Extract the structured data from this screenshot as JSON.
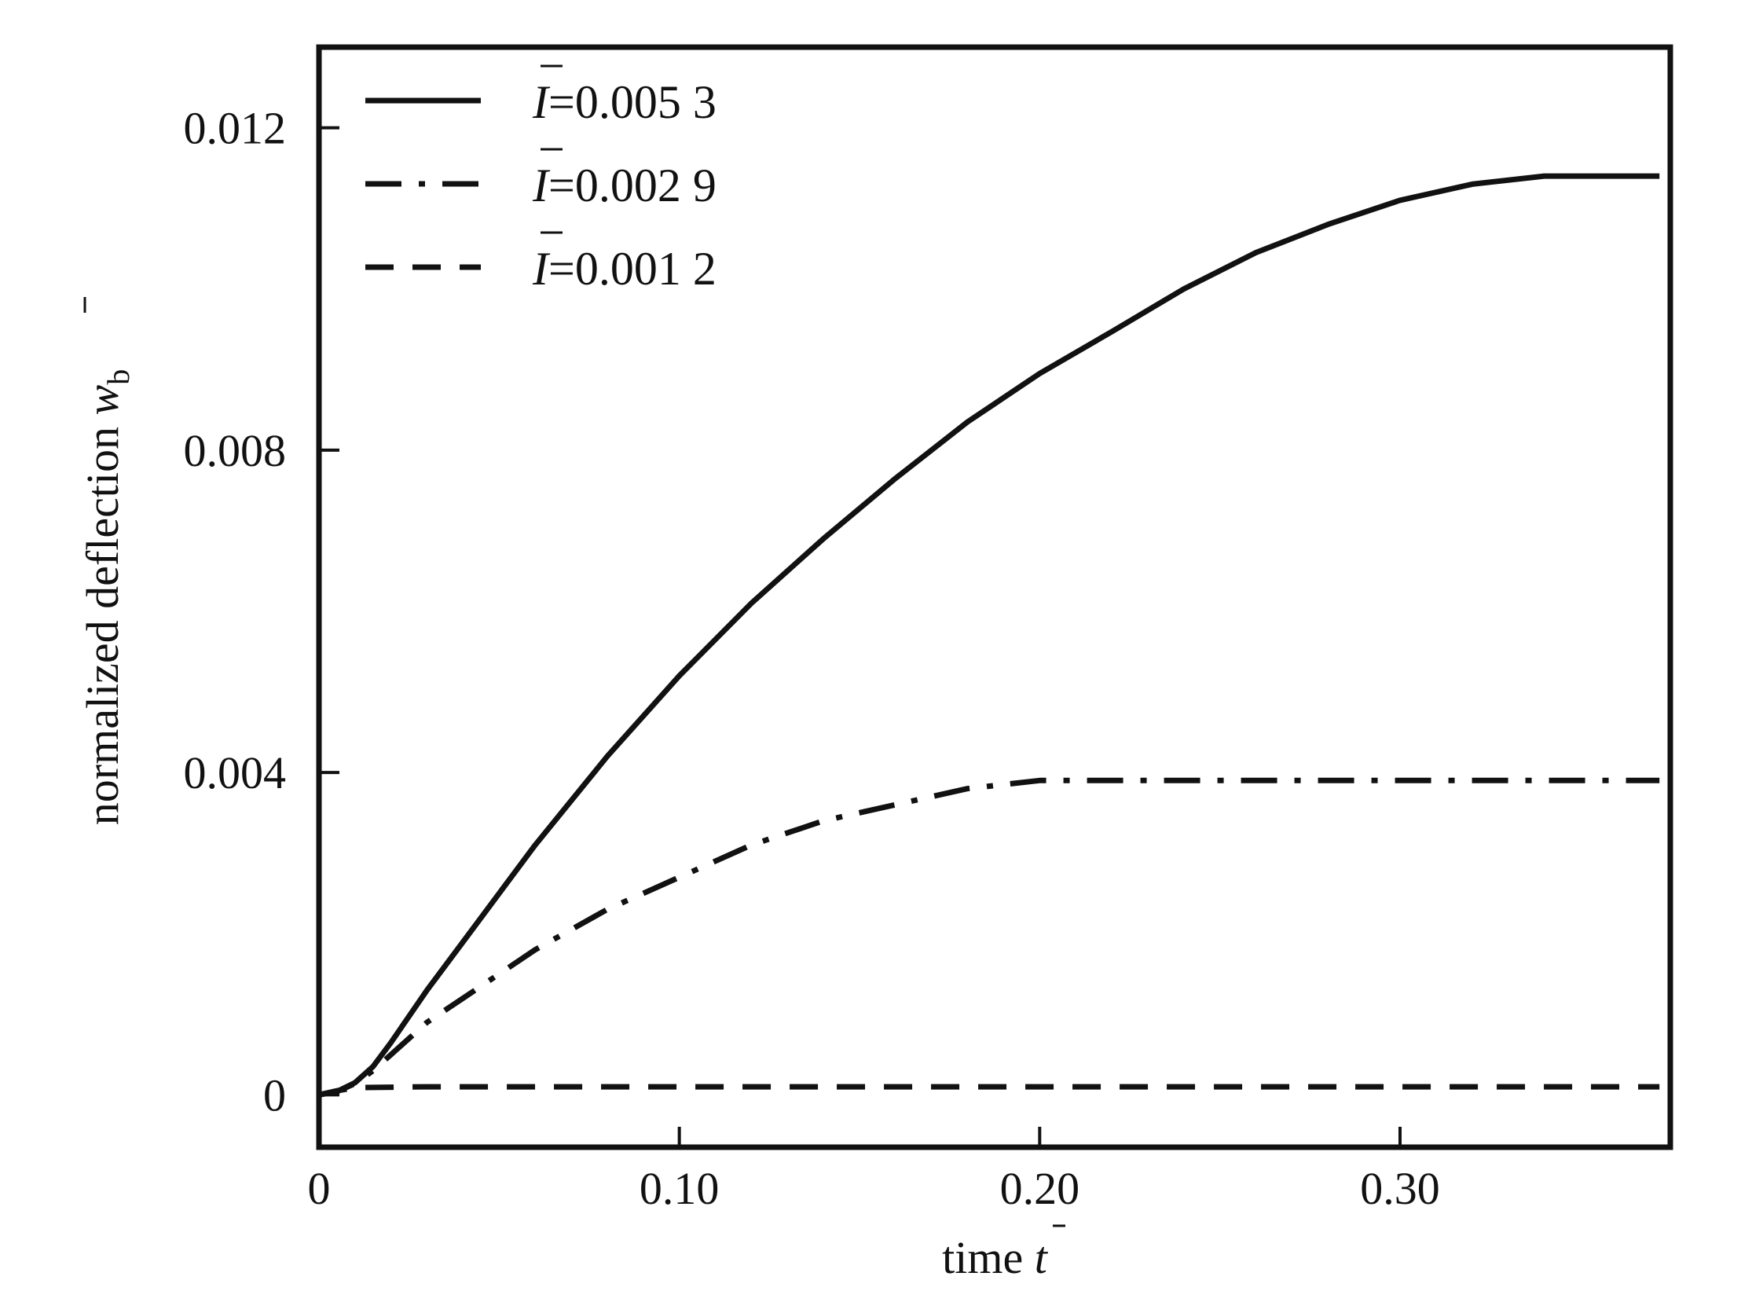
{
  "chart_data": {
    "type": "line",
    "title": "",
    "xlabel": {
      "text": "time ",
      "symbol": "t"
    },
    "ylabel": {
      "text": "normalized deflection ",
      "symbol": "w",
      "subscript": "b"
    },
    "xlim": [
      0,
      0.375
    ],
    "ylim": [
      -0.00065,
      0.013
    ],
    "xticks": [
      {
        "value": 0,
        "label": "0"
      },
      {
        "value": 0.1,
        "label": "0.10"
      },
      {
        "value": 0.2,
        "label": "0.20"
      },
      {
        "value": 0.3,
        "label": "0.30"
      }
    ],
    "yticks": [
      {
        "value": 0,
        "label": "0"
      },
      {
        "value": 0.004,
        "label": "0.004"
      },
      {
        "value": 0.008,
        "label": "0.008"
      },
      {
        "value": 0.012,
        "label": "0.012"
      }
    ],
    "grid": false,
    "legend_position": "top-left",
    "series": [
      {
        "name": "=0.005 3",
        "symbol": "I",
        "style": "solid",
        "x": [
          0,
          0.005,
          0.01,
          0.015,
          0.02,
          0.03,
          0.04,
          0.06,
          0.08,
          0.1,
          0.12,
          0.14,
          0.16,
          0.18,
          0.2,
          0.22,
          0.24,
          0.26,
          0.28,
          0.3,
          0.32,
          0.34,
          0.36,
          0.372
        ],
        "y": [
          0,
          4e-05,
          0.00015,
          0.00035,
          0.00065,
          0.0013,
          0.0019,
          0.0031,
          0.0042,
          0.0052,
          0.0061,
          0.0069,
          0.00765,
          0.00835,
          0.00895,
          0.00947,
          0.01,
          0.01045,
          0.0108,
          0.0111,
          0.0113,
          0.0114,
          0.0114,
          0.0114
        ]
      },
      {
        "name": "=0.002 9",
        "symbol": "I",
        "style": "dashdot",
        "x": [
          0,
          0.005,
          0.01,
          0.015,
          0.02,
          0.03,
          0.04,
          0.06,
          0.08,
          0.1,
          0.12,
          0.14,
          0.16,
          0.18,
          0.2,
          0.22,
          0.25,
          0.3,
          0.35,
          0.372
        ],
        "y": [
          0,
          4e-05,
          0.00014,
          0.0003,
          0.0005,
          0.0009,
          0.0012,
          0.0018,
          0.0023,
          0.0027,
          0.0031,
          0.0034,
          0.0036,
          0.0038,
          0.0039,
          0.0039,
          0.0039,
          0.0039,
          0.0039,
          0.0039
        ]
      },
      {
        "name": "=0.001 2",
        "symbol": "I",
        "style": "dashed",
        "x": [
          0,
          0.005,
          0.01,
          0.03,
          0.1,
          0.2,
          0.3,
          0.372
        ],
        "y": [
          0,
          5e-05,
          9e-05,
          0.0001,
          0.0001,
          0.0001,
          0.0001,
          0.0001
        ]
      }
    ]
  }
}
